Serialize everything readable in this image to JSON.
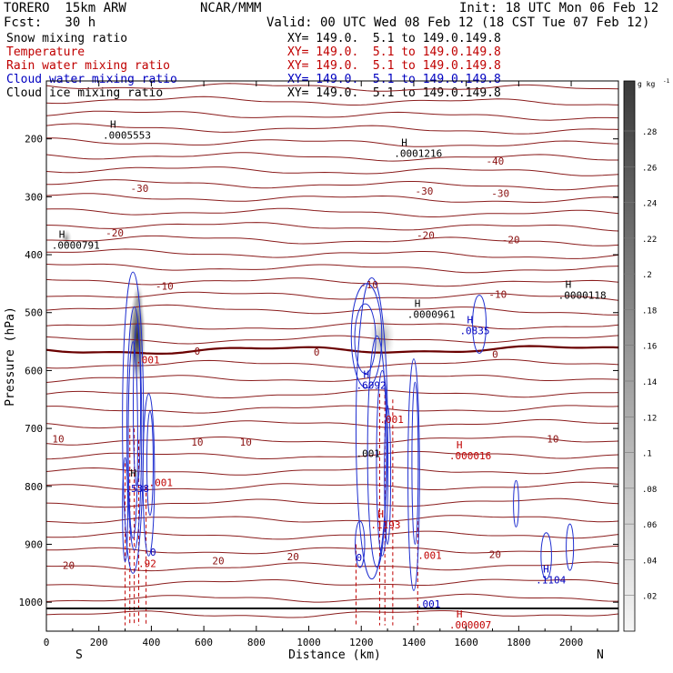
{
  "header": {
    "model": "TORERO  15km ARW",
    "center": "NCAR/MMM",
    "init": "Init: 18 UTC Mon 06 Feb 12",
    "fcst": "Fcst:   30 h",
    "valid": "Valid: 00 UTC Wed 08 Feb 12 (18 CST Tue 07 Feb 12)"
  },
  "fields": [
    {
      "name": "Snow mixing ratio",
      "color": "#000000",
      "xy": "XY= 149.0.  5.1 to 149.0.149.8",
      "xy_color": "#000000"
    },
    {
      "name": "Temperature",
      "color": "#c00000",
      "xy": "XY= 149.0.  5.1 to 149.0.149.8",
      "xy_color": "#c00000"
    },
    {
      "name": "Rain water mixing ratio",
      "color": "#c00000",
      "xy": "XY= 149.0.  5.1 to 149.0.149.8",
      "xy_color": "#c00000"
    },
    {
      "name": "Cloud water mixing ratio",
      "color": "#0000c0",
      "xy": "XY= 149.0.  5.1 to 149.0.149.8",
      "xy_color": "#0000c0"
    },
    {
      "name": "Cloud ice mixing ratio",
      "color": "#000000",
      "xy": "XY= 149.0.  5.1 to 149.0.149.8",
      "xy_color": "#000000"
    }
  ],
  "chart_data": {
    "type": "cross-section",
    "xlabel": "Distance (km)",
    "ylabel": "Pressure (hPa)",
    "x_ticks": [
      0,
      200,
      400,
      600,
      800,
      1000,
      1200,
      1400,
      1600,
      1800,
      2000
    ],
    "y_ticks": [
      200,
      300,
      400,
      500,
      600,
      700,
      800,
      900,
      1000
    ],
    "xlim": [
      0,
      2180
    ],
    "ylim": [
      1050,
      100
    ],
    "x_end_labels": {
      "left": "S",
      "right": "N"
    },
    "colorbar": {
      "unit": "g kg",
      "unit_exp": "-1",
      "ticks": [
        ".02",
        ".04",
        ".06",
        ".08",
        ".1",
        ".12",
        ".14",
        ".16",
        ".18",
        ".2",
        ".22",
        ".24",
        ".26",
        ".28"
      ],
      "max_color": "#3a3a3a",
      "min_color": "#f4f4f4"
    },
    "temperature_labels": [
      {
        "text": "-40",
        "x": 1710,
        "p": 238
      },
      {
        "text": "-30",
        "x": 355,
        "p": 285
      },
      {
        "text": "-30",
        "x": 1440,
        "p": 290
      },
      {
        "text": "-30",
        "x": 1730,
        "p": 294
      },
      {
        "text": "-20",
        "x": 260,
        "p": 362
      },
      {
        "text": "-20",
        "x": 1445,
        "p": 366
      },
      {
        "text": "-20",
        "x": 1770,
        "p": 374
      },
      {
        "text": "-10",
        "x": 450,
        "p": 454
      },
      {
        "text": "-10",
        "x": 1230,
        "p": 452
      },
      {
        "text": "-10",
        "x": 1720,
        "p": 468
      },
      {
        "text": "0",
        "x": 575,
        "p": 566
      },
      {
        "text": "0",
        "x": 1030,
        "p": 568
      },
      {
        "text": "0",
        "x": 1710,
        "p": 572
      },
      {
        "text": "10",
        "x": 45,
        "p": 718
      },
      {
        "text": "10",
        "x": 575,
        "p": 723
      },
      {
        "text": "10",
        "x": 760,
        "p": 723
      },
      {
        "text": "10",
        "x": 1930,
        "p": 718
      },
      {
        "text": "20",
        "x": 85,
        "p": 936
      },
      {
        "text": "20",
        "x": 655,
        "p": 928
      },
      {
        "text": "20",
        "x": 940,
        "p": 921
      },
      {
        "text": "20",
        "x": 1710,
        "p": 917
      }
    ],
    "extrema_labels": [
      {
        "mark": "H",
        "value": ".0005553",
        "x": 215,
        "p": 190,
        "color": "#000000"
      },
      {
        "mark": "H",
        "value": ".0001216",
        "x": 1325,
        "p": 222,
        "color": "#000000"
      },
      {
        "mark": "H",
        "value": ".0000791",
        "x": 20,
        "p": 380,
        "color": "#000000"
      },
      {
        "mark": "H",
        "value": ".0000118",
        "x": 1950,
        "p": 467,
        "color": "#000000"
      },
      {
        "mark": "H",
        "value": ".0000961",
        "x": 1375,
        "p": 500,
        "color": "#000000"
      },
      {
        "mark": "H",
        "value": ".0835",
        "x": 1575,
        "p": 528,
        "color": "#0000c0"
      },
      {
        "mark": "H",
        "value": ".6092",
        "x": 1180,
        "p": 622,
        "color": "#0000c0"
      },
      {
        "mark": "H",
        "value": ".000016",
        "x": 1535,
        "p": 744,
        "color": "#c00000"
      },
      {
        "mark": "H",
        "value": ".1193",
        "x": 1235,
        "p": 863,
        "color": "#c00000"
      },
      {
        "mark": "H",
        "value": ".1104",
        "x": 1865,
        "p": 958,
        "color": "#0000c0"
      },
      {
        "mark": "H",
        "value": ".000007",
        "x": 1535,
        "p": 1036,
        "color": "#c00000"
      },
      {
        "mark": "",
        "value": ".001",
        "x": 340,
        "p": 578,
        "color": "#c00000"
      },
      {
        "mark": "",
        "value": ".001",
        "x": 1270,
        "p": 681,
        "color": "#c00000"
      },
      {
        "mark": "",
        "value": ".001",
        "x": 1180,
        "p": 740,
        "color": "#000000"
      },
      {
        "mark": "",
        "value": ".001",
        "x": 390,
        "p": 790,
        "color": "#c00000"
      },
      {
        "mark": "",
        "value": "H",
        "x": 320,
        "p": 774,
        "color": "#000000"
      },
      {
        "mark": "",
        "value": ".538",
        "x": 300,
        "p": 800,
        "color": "#0000c0"
      },
      {
        "mark": "",
        "value": ".92",
        "x": 350,
        "p": 930,
        "color": "#c00000"
      },
      {
        "mark": "",
        "value": ".001",
        "x": 1415,
        "p": 916,
        "color": "#c00000"
      },
      {
        "mark": "",
        "value": ".001",
        "x": 1410,
        "p": 1000,
        "color": "#0000c0"
      },
      {
        "mark": "",
        "value": "0",
        "x": 1180,
        "p": 920,
        "color": "#0000c0"
      },
      {
        "mark": "",
        "value": "0",
        "x": 395,
        "p": 910,
        "color": "#0000c0"
      }
    ]
  }
}
